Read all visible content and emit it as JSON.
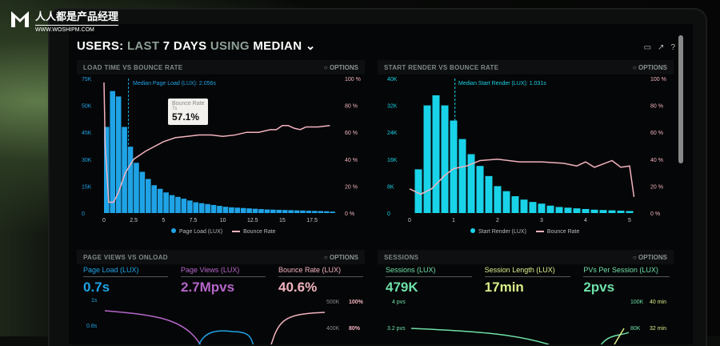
{
  "watermark": {
    "name": "人人都是产品经理",
    "url": "WWW.WOSHIPM.COM"
  },
  "header": {
    "users": "USERS:",
    "last": "LAST",
    "days": "7 DAYS",
    "using": "USING",
    "metric": "MEDIAN",
    "chevron": "chevron-down-icon"
  },
  "toolbar_icons": [
    "monitor-icon",
    "share-icon",
    "help-icon"
  ],
  "options_label": "OPTIONS",
  "panels": {
    "load": {
      "title": "LOAD TIME VS BOUNCE RATE",
      "median": "Median Page Load (LUX): 2.056s",
      "tooltip": {
        "label": "Bounce Rate",
        "x": "7s",
        "value": "57.1%"
      },
      "legend": [
        "Page Load (LUX)",
        "Bounce Rate"
      ]
    },
    "render": {
      "title": "START RENDER VS BOUNCE RATE",
      "median": "Median Start Render (LUX): 1.031s",
      "legend": [
        "Start Render (LUX)",
        "Bounce Rate"
      ]
    },
    "pv": {
      "title": "PAGE VIEWS VS ONLOAD",
      "stats": [
        {
          "label": "Page Load (LUX)",
          "value": "0.7s"
        },
        {
          "label": "Page Views (LUX)",
          "value": "2.7Mpvs"
        },
        {
          "label": "Bounce Rate (LUX)",
          "value": "40.6%"
        }
      ],
      "left_ticks": [
        "1s",
        "0.8s"
      ],
      "right_ticks": [
        [
          "500K",
          "100%"
        ],
        [
          "400K",
          "80%"
        ]
      ]
    },
    "sessions": {
      "title": "SESSIONS",
      "stats": [
        {
          "label": "Sessions (LUX)",
          "value": "479K"
        },
        {
          "label": "Session Length (LUX)",
          "value": "17min"
        },
        {
          "label": "PVs Per Session (LUX)",
          "value": "2pvs"
        }
      ],
      "left_ticks": [
        "4 pvs",
        "3.2 pvs"
      ],
      "right_ticks": [
        [
          "100K",
          "40 min"
        ],
        [
          "80K",
          "32 min"
        ]
      ]
    }
  },
  "colors": {
    "blue": "#1fa3e6",
    "cyan": "#19d3e8",
    "pink": "#f2b3bf",
    "purple": "#b566c9",
    "green": "#6ee0a8",
    "lime": "#d8f08a"
  },
  "chart_data": [
    {
      "type": "bar",
      "title": "LOAD TIME VS BOUNCE RATE",
      "xlim": [
        0,
        19.5
      ],
      "xticks": [
        "0",
        "2.5",
        "5",
        "7.5",
        "10",
        "12.5",
        "15",
        "17.5"
      ],
      "yticks_left": [
        "0",
        "15K",
        "30K",
        "45K",
        "50K",
        "75K"
      ],
      "yticks_right": [
        "0 %",
        "20 %",
        "40 %",
        "60 %",
        "80 %",
        "100 %"
      ],
      "ylim": [
        0,
        75
      ],
      "bars": {
        "name": "Page Load (LUX)",
        "x": [
          0,
          0.5,
          1,
          1.5,
          2,
          2.5,
          3,
          3.5,
          4,
          4.5,
          5,
          5.5,
          6,
          6.5,
          7,
          7.5,
          8,
          8.5,
          9,
          9.5,
          10,
          10.5,
          11,
          11.5,
          12,
          12.5,
          13,
          13.5,
          14,
          14.5,
          15,
          15.5,
          16,
          16.5,
          17,
          17.5,
          18,
          18.5,
          19
        ],
        "values": [
          48,
          68,
          65,
          48,
          37,
          28,
          23,
          19,
          15.5,
          13.5,
          11.5,
          10,
          9,
          8,
          7,
          6,
          5.5,
          5,
          4.5,
          4,
          3.5,
          3.2,
          3,
          2.8,
          2.6,
          2.4,
          2.2,
          2,
          1.9,
          1.8,
          1.7,
          1.6,
          1.5,
          1.4,
          1.3,
          1.2,
          1.1,
          1,
          0.8
        ]
      },
      "line": {
        "name": "Bounce Rate",
        "x": [
          0,
          0.1,
          0.4,
          0.8,
          1.2,
          1.8,
          2.5,
          3.5,
          5,
          6,
          7,
          8,
          9,
          10,
          11,
          12,
          13,
          14,
          14.5,
          15,
          15.5,
          16,
          16.5,
          17,
          18,
          19
        ],
        "values": [
          97,
          50,
          8,
          8,
          15,
          30,
          40,
          46,
          53,
          56,
          57,
          58,
          58,
          57,
          58,
          60,
          60,
          62,
          62,
          65,
          65,
          63,
          62,
          64,
          64,
          65
        ]
      }
    },
    {
      "type": "bar",
      "title": "START RENDER VS BOUNCE RATE",
      "xlim": [
        0,
        5.2
      ],
      "xticks": [
        "0",
        "1",
        "2",
        "3",
        "4",
        "5"
      ],
      "yticks_left": [
        "0",
        "8K",
        "16K",
        "24K",
        "32K",
        "40K"
      ],
      "yticks_right": [
        "0 %",
        "20 %",
        "40 %",
        "60 %",
        "80 %",
        "100 %"
      ],
      "ylim": [
        0,
        40
      ],
      "bars": {
        "name": "Start Render (LUX)",
        "x": [
          0.2,
          0.4,
          0.6,
          0.8,
          1,
          1.2,
          1.4,
          1.6,
          1.8,
          2,
          2.2,
          2.4,
          2.6,
          2.8,
          3,
          3.2,
          3.4,
          3.6,
          3.8,
          4,
          4.2,
          4.4,
          4.6,
          4.8,
          5
        ],
        "values": [
          13,
          32,
          35,
          32,
          27.5,
          22,
          17.5,
          14,
          11,
          8,
          6.5,
          5,
          4,
          3.3,
          2.8,
          2.2,
          1.8,
          1.6,
          1.4,
          1.2,
          1,
          0.9,
          0.8,
          0.7,
          0.6
        ]
      },
      "line": {
        "name": "Bounce Rate",
        "x": [
          0,
          0.25,
          0.5,
          0.8,
          1,
          1.3,
          1.6,
          2,
          2.5,
          3,
          3.5,
          3.8,
          4,
          4.2,
          4.6,
          4.8,
          5,
          5.1
        ],
        "values": [
          18,
          14,
          18,
          28,
          33,
          35,
          39,
          40,
          38,
          38,
          37,
          35,
          38,
          34,
          39,
          34,
          35,
          12
        ]
      }
    }
  ]
}
